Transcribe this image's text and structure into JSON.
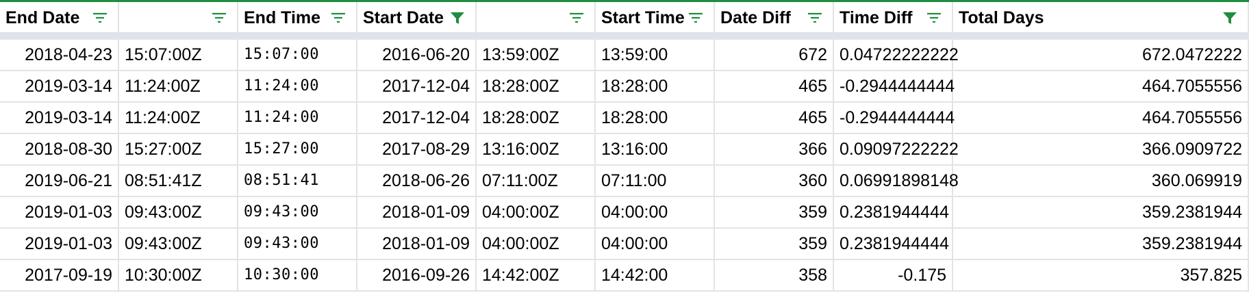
{
  "colors": {
    "accent": "#1e8e3e",
    "gridline": "#e2e3e3",
    "freeze": "#dfe3ea"
  },
  "headers": [
    {
      "label": "End Date",
      "filter_icon": "filter-lines-icon",
      "filter_active": false
    },
    {
      "label": "",
      "filter_icon": "filter-lines-icon",
      "filter_active": false
    },
    {
      "label": "End Time",
      "filter_icon": "filter-lines-icon",
      "filter_active": false
    },
    {
      "label": "Start Date",
      "filter_icon": "filter-funnel-icon",
      "filter_active": true
    },
    {
      "label": "",
      "filter_icon": "filter-lines-icon",
      "filter_active": false
    },
    {
      "label": "Start Time",
      "filter_icon": "filter-lines-icon",
      "filter_active": false
    },
    {
      "label": "Date Diff",
      "filter_icon": "filter-lines-icon",
      "filter_active": false
    },
    {
      "label": "Time Diff",
      "filter_icon": "filter-lines-icon",
      "filter_active": false
    },
    {
      "label": "Total Days",
      "filter_icon": "filter-funnel-icon",
      "filter_active": true
    }
  ],
  "rows": [
    [
      "2018-04-23",
      "15:07:00Z",
      "15:07:00",
      "2016-06-20",
      "13:59:00Z",
      "13:59:00",
      "672",
      "0.04722222222",
      "672.0472222"
    ],
    [
      "2019-03-14",
      "11:24:00Z",
      "11:24:00",
      "2017-12-04",
      "18:28:00Z",
      "18:28:00",
      "465",
      "-0.2944444444",
      "464.7055556"
    ],
    [
      "2019-03-14",
      "11:24:00Z",
      "11:24:00",
      "2017-12-04",
      "18:28:00Z",
      "18:28:00",
      "465",
      "-0.2944444444",
      "464.7055556"
    ],
    [
      "2018-08-30",
      "15:27:00Z",
      "15:27:00",
      "2017-08-29",
      "13:16:00Z",
      "13:16:00",
      "366",
      "0.09097222222",
      "366.0909722"
    ],
    [
      "2019-06-21",
      "08:51:41Z",
      "08:51:41",
      "2018-06-26",
      "07:11:00Z",
      "07:11:00",
      "360",
      "0.06991898148",
      "360.069919"
    ],
    [
      "2019-01-03",
      "09:43:00Z",
      "09:43:00",
      "2018-01-09",
      "04:00:00Z",
      "04:00:00",
      "359",
      "0.2381944444",
      "359.2381944"
    ],
    [
      "2019-01-03",
      "09:43:00Z",
      "09:43:00",
      "2018-01-09",
      "04:00:00Z",
      "04:00:00",
      "359",
      "0.2381944444",
      "359.2381944"
    ],
    [
      "2017-09-19",
      "10:30:00Z",
      "10:30:00",
      "2016-09-26",
      "14:42:00Z",
      "14:42:00",
      "358",
      "-0.175",
      "357.825"
    ]
  ]
}
